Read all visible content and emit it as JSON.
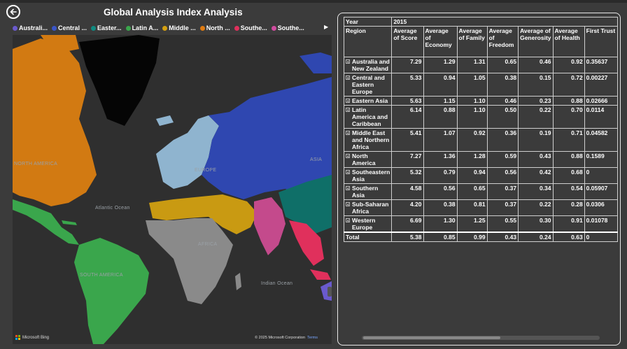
{
  "header": {
    "title": "Global Analysis Index Analysis"
  },
  "legend": [
    {
      "label": "Australi...",
      "color": "#6a5acd"
    },
    {
      "label": "Central ...",
      "color": "#3a55c8"
    },
    {
      "label": "Easter...",
      "color": "#0f8a80"
    },
    {
      "label": "Latin A...",
      "color": "#3aa64c"
    },
    {
      "label": "Middle ...",
      "color": "#d4a010"
    },
    {
      "label": "North ...",
      "color": "#e07b10"
    },
    {
      "label": "Southe...",
      "color": "#e0305c"
    },
    {
      "label": "Southe...",
      "color": "#d04ca0"
    }
  ],
  "map": {
    "labels": {
      "north_america": "NORTH AMERICA",
      "atlantic": "Atlantic Ocean",
      "south_america": "SOUTH AMERICA",
      "africa": "AFRICA",
      "europe": "EUROPE",
      "asia": "ASIA",
      "indian": "Indian Ocean"
    },
    "attribution": "Microsoft Bing",
    "copyright": "© 2025 Microsoft Corporation",
    "terms": "Terms"
  },
  "table": {
    "year_label": "Year",
    "year_value": "2015",
    "region_label": "Region",
    "columns": [
      "Average of Score",
      "Average of Economy",
      "Average of Family",
      "Average of Freedom",
      "Average of Generosity",
      "Average of Health",
      "First Trust"
    ],
    "rows": [
      {
        "region": "Australia and New Zealand",
        "values": [
          "7.29",
          "1.29",
          "1.31",
          "0.65",
          "0.46",
          "0.92",
          "0.35637"
        ]
      },
      {
        "region": "Central and Eastern Europe",
        "values": [
          "5.33",
          "0.94",
          "1.05",
          "0.38",
          "0.15",
          "0.72",
          "0.00227"
        ]
      },
      {
        "region": "Eastern Asia",
        "values": [
          "5.63",
          "1.15",
          "1.10",
          "0.46",
          "0.23",
          "0.88",
          "0.02666"
        ]
      },
      {
        "region": "Latin America and Caribbean",
        "values": [
          "6.14",
          "0.88",
          "1.10",
          "0.50",
          "0.22",
          "0.70",
          "0.0114"
        ]
      },
      {
        "region": "Middle East and Northern Africa",
        "values": [
          "5.41",
          "1.07",
          "0.92",
          "0.36",
          "0.19",
          "0.71",
          "0.04582"
        ]
      },
      {
        "region": "North America",
        "values": [
          "7.27",
          "1.36",
          "1.28",
          "0.59",
          "0.43",
          "0.88",
          "0.1589"
        ]
      },
      {
        "region": "Southeastern Asia",
        "values": [
          "5.32",
          "0.79",
          "0.94",
          "0.56",
          "0.42",
          "0.68",
          "0"
        ]
      },
      {
        "region": "Southern Asia",
        "values": [
          "4.58",
          "0.56",
          "0.65",
          "0.37",
          "0.34",
          "0.54",
          "0.05907"
        ]
      },
      {
        "region": "Sub-Saharan Africa",
        "values": [
          "4.20",
          "0.38",
          "0.81",
          "0.37",
          "0.22",
          "0.28",
          "0.0306"
        ]
      },
      {
        "region": "Western Europe",
        "values": [
          "6.69",
          "1.30",
          "1.25",
          "0.55",
          "0.30",
          "0.91",
          "0.01078"
        ]
      }
    ],
    "total": {
      "region": "Total",
      "values": [
        "5.38",
        "0.85",
        "0.99",
        "0.43",
        "0.24",
        "0.63",
        "0"
      ]
    }
  }
}
